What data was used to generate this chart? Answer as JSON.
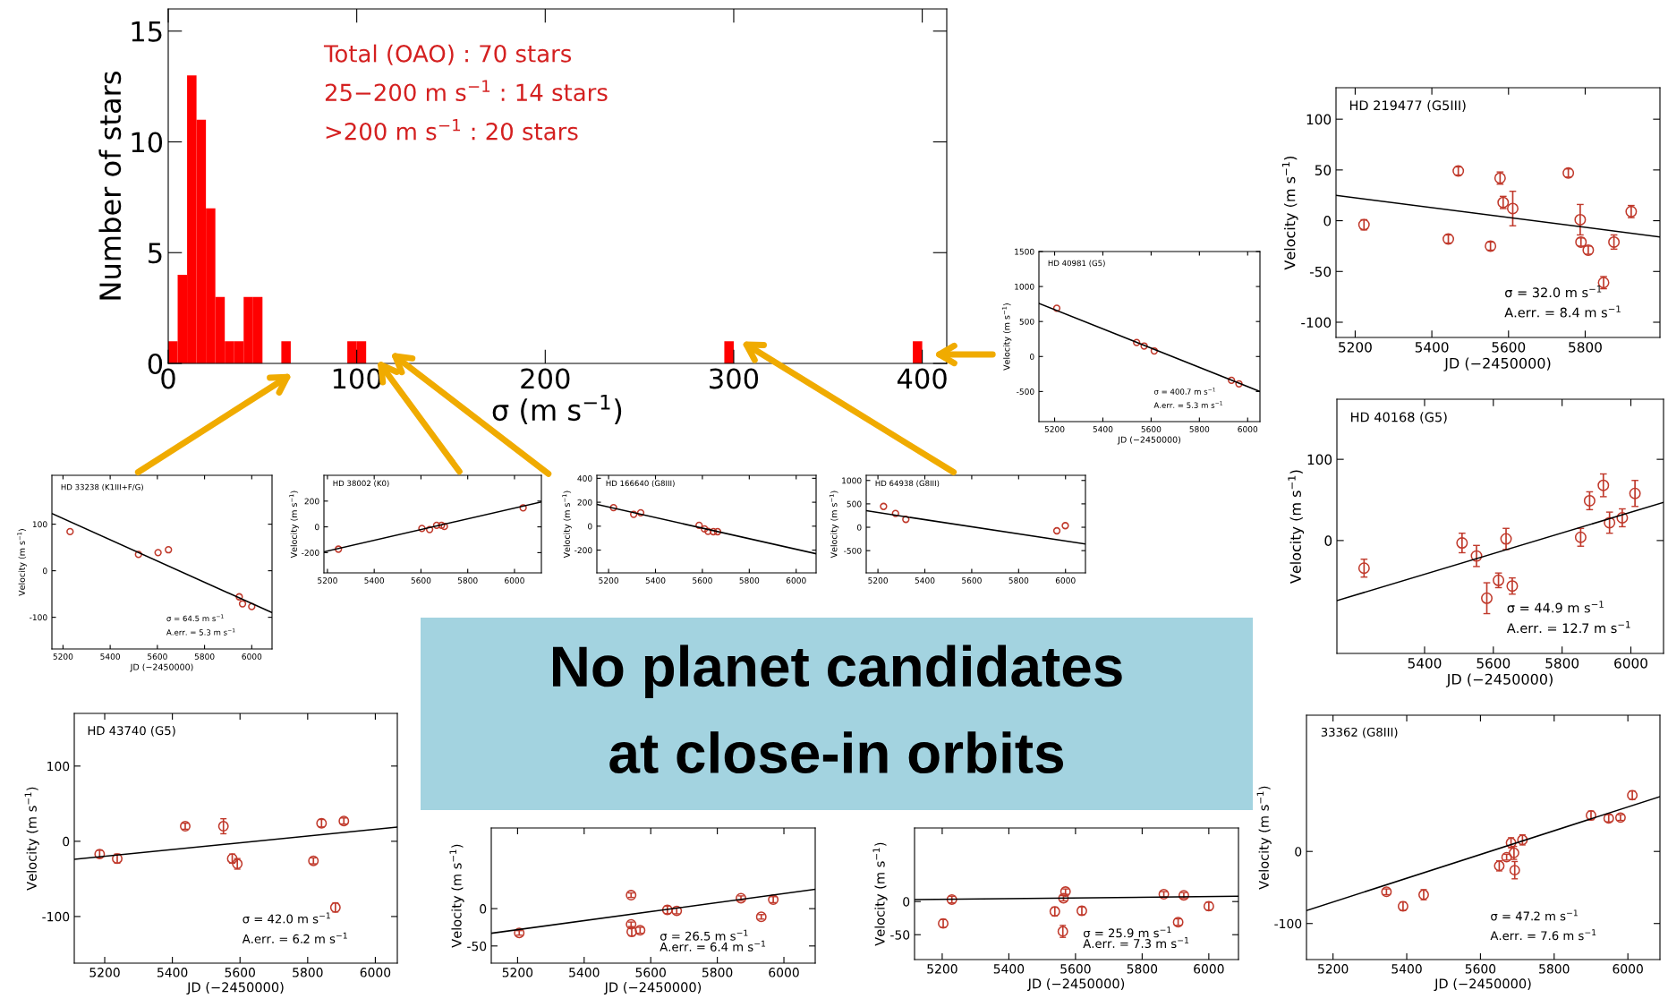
{
  "chart_data": [
    {
      "type": "histogram",
      "xlabel": "σ (m s$^{−1}$)",
      "ylabel": "Number of stars",
      "color": "#ff0000",
      "xlim": [
        0,
        413
      ],
      "ylim": [
        0,
        16
      ],
      "xticks": [
        0,
        100,
        200,
        300,
        400
      ],
      "yticks": [
        0,
        5,
        10,
        15
      ],
      "annotations": [
        "Total (OAO) : 70 stars",
        "25−200 m s$^{−1}$ : 14 stars",
        ">200 m s$^{−1}$ : 20 stars"
      ],
      "bins": [
        0,
        5,
        10,
        15,
        20,
        25,
        30,
        35,
        40,
        45,
        50,
        55,
        60,
        65,
        70,
        75,
        80,
        85,
        90,
        95,
        100,
        105,
        110,
        115,
        120,
        125,
        130,
        135,
        140,
        145,
        150,
        155,
        160,
        165,
        170,
        175,
        180,
        185,
        190,
        195,
        200,
        205,
        210,
        215,
        220,
        225,
        230,
        235,
        240,
        245,
        250,
        255,
        260,
        265,
        270,
        275,
        280,
        285,
        290,
        295,
        300,
        305,
        310,
        315,
        320,
        325,
        330,
        335,
        340,
        345,
        350,
        355,
        360,
        365,
        370,
        375,
        380,
        385,
        390,
        395,
        400
      ],
      "values": [
        1,
        4,
        13,
        11,
        7,
        3,
        1,
        1,
        3,
        3,
        0,
        0,
        1,
        0,
        0,
        0,
        0,
        0,
        0,
        1,
        1,
        0,
        0,
        0,
        0,
        0,
        0,
        0,
        0,
        0,
        0,
        0,
        0,
        0,
        0,
        0,
        0,
        0,
        0,
        0,
        0,
        0,
        0,
        0,
        0,
        0,
        0,
        0,
        0,
        0,
        0,
        0,
        0,
        0,
        0,
        0,
        0,
        0,
        0,
        1,
        0,
        0,
        0,
        0,
        0,
        0,
        0,
        0,
        0,
        0,
        0,
        0,
        0,
        0,
        0,
        0,
        0,
        0,
        0,
        1
      ]
    },
    {
      "type": "scatter",
      "xlabel": "JD (−2450000)",
      "ylabel": "Velocity (m s$^{−1}$)",
      "xlim": [
        5135,
        6051
      ],
      "ylim": [
        -930,
        1500
      ],
      "xticks": [
        5200,
        5400,
        5600,
        5800,
        6000
      ],
      "yticks": [
        -500,
        0,
        500,
        1000,
        1500
      ],
      "marker": "circle",
      "annotations": [
        "HD 40981 (G5)",
        "σ = 400.7 m s$^{−1}$",
        "A.err. = 5.3 m s$^{−1}$"
      ],
      "series": [
        {
          "color": "#c0392b",
          "x": [
            5209,
            5540,
            5571,
            5613,
            5933,
            5964
          ],
          "values": [
            690,
            200,
            150,
            80,
            -340,
            -390
          ]
        },
        {
          "type": "line",
          "marker": "none",
          "color": "#000000",
          "x": [
            5135,
            6051
          ],
          "values": [
            760,
            -500
          ]
        }
      ]
    },
    {
      "type": "scatter",
      "xlabel": "JD (−2450000)",
      "ylabel": "Velocity (m s$^{−1}$)",
      "xlim": [
        5150,
        5995
      ],
      "ylim": [
        -115,
        131
      ],
      "xticks": [
        5200,
        5400,
        5600,
        5800
      ],
      "yticks": [
        -100,
        -50,
        0,
        50,
        100
      ],
      "marker": "circle",
      "annotations": [
        "HD 219477 (G5III)",
        "σ = 32.0 m s$^{−1}$",
        "A.err. = 8.4 m s$^{−1}$"
      ],
      "series": [
        {
          "color": "#c0392b",
          "x": [
            5223,
            5443,
            5469,
            5553,
            5578,
            5586,
            5611,
            5756,
            5787,
            5789,
            5808,
            5848,
            5875,
            5920
          ],
          "values": [
            -4,
            -18,
            49,
            -25,
            42,
            18,
            12,
            47,
            1,
            -21,
            -29,
            -61,
            -21,
            9
          ],
          "errors": [
            5,
            4,
            4,
            4,
            6,
            6,
            17,
            4,
            15,
            4,
            4,
            6,
            7,
            6
          ]
        },
        {
          "type": "line",
          "marker": "none",
          "color": "#000000",
          "x": [
            5150,
            5995
          ],
          "values": [
            25,
            -16
          ]
        }
      ]
    },
    {
      "type": "scatter",
      "xlabel": "JD (−2450000)",
      "ylabel": "Velocity (m s$^{−1}$)",
      "xlim": [
        5153,
        6086
      ],
      "ylim": [
        -168,
        205
      ],
      "xticks": [
        5200,
        5400,
        5600,
        5800,
        6000
      ],
      "yticks": [
        -100,
        0,
        100
      ],
      "marker": "circle",
      "annotations": [
        "HD 33238 (K1III+F/G)",
        "σ = 64.5 m s$^{−1}$",
        "A.err. = 5.3 m s$^{−1}$"
      ],
      "series": [
        {
          "color": "#c0392b",
          "x": [
            5230,
            5520,
            5603,
            5647,
            5947,
            5961,
            6000
          ],
          "values": [
            84,
            35,
            39,
            45,
            -56,
            -71,
            -77
          ]
        },
        {
          "type": "line",
          "marker": "none",
          "color": "#000000",
          "x": [
            5153,
            6086
          ],
          "values": [
            123,
            -90
          ]
        }
      ]
    },
    {
      "type": "scatter",
      "ylabel": "Velocity (m s$^{−1}$)",
      "xlim": [
        5185,
        6115
      ],
      "ylim": [
        -357,
        400
      ],
      "xticks": [
        5200,
        5400,
        5600,
        5800,
        6000
      ],
      "yticks": [
        -200,
        0,
        200
      ],
      "marker": "circle",
      "annotations": [
        "HD 38002 (K0)"
      ],
      "series": [
        {
          "color": "#c0392b",
          "x": [
            5247,
            5604,
            5637,
            5667,
            5688,
            5700,
            6037
          ],
          "values": [
            -173,
            -12,
            -21,
            12,
            12,
            3,
            148
          ]
        },
        {
          "type": "line",
          "marker": "none",
          "color": "#000000",
          "x": [
            5185,
            6115
          ],
          "values": [
            -194,
            194
          ]
        }
      ]
    },
    {
      "type": "scatter",
      "ylabel": "Velocity (m s$^{−1}$)",
      "xlim": [
        5150,
        6085
      ],
      "ylim": [
        -390,
        425
      ],
      "xticks": [
        5200,
        5400,
        5600,
        5800,
        6000
      ],
      "yticks": [
        -200,
        0,
        200,
        400
      ],
      "marker": "circle",
      "annotations": [
        "HD 166640 (G8III)"
      ],
      "series": [
        {
          "color": "#c0392b",
          "x": [
            5221,
            5307,
            5337,
            5586,
            5609,
            5624,
            5647,
            5665
          ],
          "values": [
            155,
            99,
            112,
            7,
            -23,
            -43,
            -46,
            -46
          ]
        },
        {
          "type": "line",
          "marker": "none",
          "color": "#000000",
          "x": [
            5150,
            6085
          ],
          "values": [
            182,
            -230
          ]
        }
      ]
    },
    {
      "type": "scatter",
      "ylabel": "Velocity (m s$^{−1}$)",
      "xlim": [
        5150,
        6085
      ],
      "ylim": [
        -975,
        1110
      ],
      "xticks": [
        5200,
        5400,
        5600,
        5800,
        6000
      ],
      "yticks": [
        -500,
        0,
        500,
        1000
      ],
      "marker": "circle",
      "annotations": [
        "HD 64938 (G8III)"
      ],
      "series": [
        {
          "color": "#c0392b",
          "x": [
            5224,
            5275,
            5319,
            5963,
            5999
          ],
          "values": [
            445,
            294,
            168,
            -76,
            34
          ]
        },
        {
          "type": "line",
          "marker": "none",
          "color": "#000000",
          "x": [
            5150,
            6085
          ],
          "values": [
            353,
            -360
          ]
        }
      ]
    },
    {
      "type": "scatter",
      "xlabel": "JD (−2450000)",
      "ylabel": "Velocity (m s$^{−1}$)",
      "xlim": [
        5145,
        6095
      ],
      "ylim": [
        -139,
        174
      ],
      "xticks": [
        5400,
        5600,
        5800,
        6000
      ],
      "yticks": [
        0,
        100
      ],
      "marker": "circle",
      "annotations": [
        "HD 40168 (G5)",
        "σ = 44.9 m s$^{−1}$",
        "A.err. = 12.7 m s$^{−1}$"
      ],
      "series": [
        {
          "color": "#c0392b",
          "x": [
            5224,
            5509,
            5551,
            5581,
            5615,
            5637,
            5655,
            5854,
            5880,
            5920,
            5938,
            5975,
            6012
          ],
          "values": [
            -34,
            -3,
            -19,
            -71,
            -49,
            2,
            -56,
            4,
            49,
            68,
            22,
            28,
            58
          ],
          "errors": [
            11,
            12,
            13,
            19,
            9,
            13,
            10,
            11,
            11,
            14,
            13,
            11,
            16
          ]
        },
        {
          "type": "line",
          "marker": "none",
          "color": "#000000",
          "x": [
            5145,
            6095
          ],
          "values": [
            -74,
            47
          ]
        }
      ]
    },
    {
      "type": "scatter",
      "xlabel": "JD (−2450000)",
      "ylabel": "Velocity (m s$^{−1}$)",
      "xlim": [
        5110,
        6065
      ],
      "ylim": [
        -162,
        170
      ],
      "xticks": [
        5200,
        5400,
        5600,
        5800,
        6000
      ],
      "yticks": [
        -100,
        0,
        100
      ],
      "marker": "circle",
      "annotations": [
        "HD 43740 (G5)",
        "σ = 42.0 m s$^{−1}$",
        "A.err. = 6.2 m s$^{−1}$"
      ],
      "series": [
        {
          "color": "#c0392b",
          "x": [
            5185,
            5237,
            5438,
            5551,
            5577,
            5592,
            5817,
            5841,
            5882,
            5907
          ],
          "values": [
            -17,
            -23,
            20,
            20,
            -23,
            -30,
            -26,
            24,
            -88,
            27
          ],
          "errors": [
            5,
            6,
            4,
            10,
            6,
            7,
            4,
            5,
            6,
            4
          ]
        },
        {
          "type": "line",
          "marker": "none",
          "color": "#000000",
          "x": [
            5110,
            6065
          ],
          "values": [
            -24,
            19
          ]
        }
      ]
    },
    {
      "type": "scatter",
      "xlabel": "JD (−2450000)",
      "ylabel": "Velocity (m s$^{−1}$)",
      "xlim": [
        5121,
        6094
      ],
      "ylim": [
        -73,
        108
      ],
      "xticks": [
        5200,
        5400,
        5600,
        5800,
        6000
      ],
      "yticks": [
        -50,
        0
      ],
      "marker": "circle",
      "annotations": [
        "σ = 26.5 m s$^{−1}$",
        "A.err. = 6.4 m s$^{−1}$"
      ],
      "series": [
        {
          "color": "#c0392b",
          "x": [
            5205,
            5541,
            5541,
            5543,
            5568,
            5650,
            5678,
            5871,
            5932,
            5968
          ],
          "values": [
            -32.5,
            18,
            -21,
            -31,
            -29,
            -1.6,
            -3,
            14,
            -11,
            12
          ],
          "errors": [
            3,
            3,
            3,
            5.5,
            4,
            5,
            4,
            3,
            3,
            4
          ]
        },
        {
          "type": "line",
          "marker": "none",
          "color": "#000000",
          "x": [
            5121,
            6094
          ],
          "values": [
            -33,
            26
          ]
        }
      ]
    },
    {
      "type": "scatter",
      "xlabel": "JD (−2450000)",
      "ylabel": "Velocity (m s$^{−1}$)",
      "xlim": [
        5117,
        6089
      ],
      "ylim": [
        -87.5,
        111
      ],
      "xticks": [
        5200,
        5400,
        5600,
        5800,
        6000
      ],
      "yticks": [
        -50,
        0
      ],
      "marker": "circle",
      "annotations": [
        "σ = 25.9 m s$^{−1}$",
        "A.err. = 7.3 m s$^{−1}$"
      ],
      "series": [
        {
          "color": "#c0392b",
          "x": [
            5203,
            5229,
            5538,
            5562,
            5564,
            5570,
            5619,
            5865,
            5908,
            5925,
            6000
          ],
          "values": [
            -33,
            3,
            -15,
            -45,
            5,
            15,
            -14,
            11,
            -31,
            9.5,
            -7
          ],
          "errors": [
            6,
            5,
            6.5,
            9,
            4,
            4,
            6,
            4,
            5,
            4,
            6
          ]
        },
        {
          "type": "line",
          "marker": "none",
          "color": "#000000",
          "x": [
            5117,
            6089
          ],
          "values": [
            3,
            8
          ]
        }
      ]
    },
    {
      "type": "scatter",
      "xlabel": "JD (−2450000)",
      "ylabel": "Velocity (m s$^{−1}$)",
      "xlim": [
        5128,
        6087
      ],
      "ylim": [
        -150,
        189
      ],
      "xticks": [
        5200,
        5400,
        5600,
        5800,
        6000
      ],
      "yticks": [
        -100,
        0
      ],
      "marker": "circle",
      "annotations": [
        "33362 (G8III)",
        "σ = 47.2 m s$^{−1}$",
        "A.err. = 7.6 m s$^{−1}$"
      ],
      "series": [
        {
          "color": "#c0392b",
          "x": [
            5345,
            5390,
            5446,
            5651,
            5671,
            5683,
            5691,
            5693,
            5714,
            5900,
            5948,
            5980,
            6012
          ],
          "values": [
            -56,
            -76,
            -60,
            -20,
            -8,
            12,
            -2,
            -26,
            16,
            50,
            46,
            47,
            78
          ],
          "errors": [
            4,
            6,
            7,
            7,
            4,
            7,
            9,
            12,
            7,
            6,
            5,
            4,
            6
          ]
        },
        {
          "type": "line",
          "marker": "none",
          "color": "#000000",
          "x": [
            5128,
            6087
          ],
          "values": [
            -82,
            76
          ]
        }
      ]
    },
    {
      "type": "other",
      "annotations": [
        "No planet candidates",
        "at close-in orbits"
      ]
    }
  ]
}
